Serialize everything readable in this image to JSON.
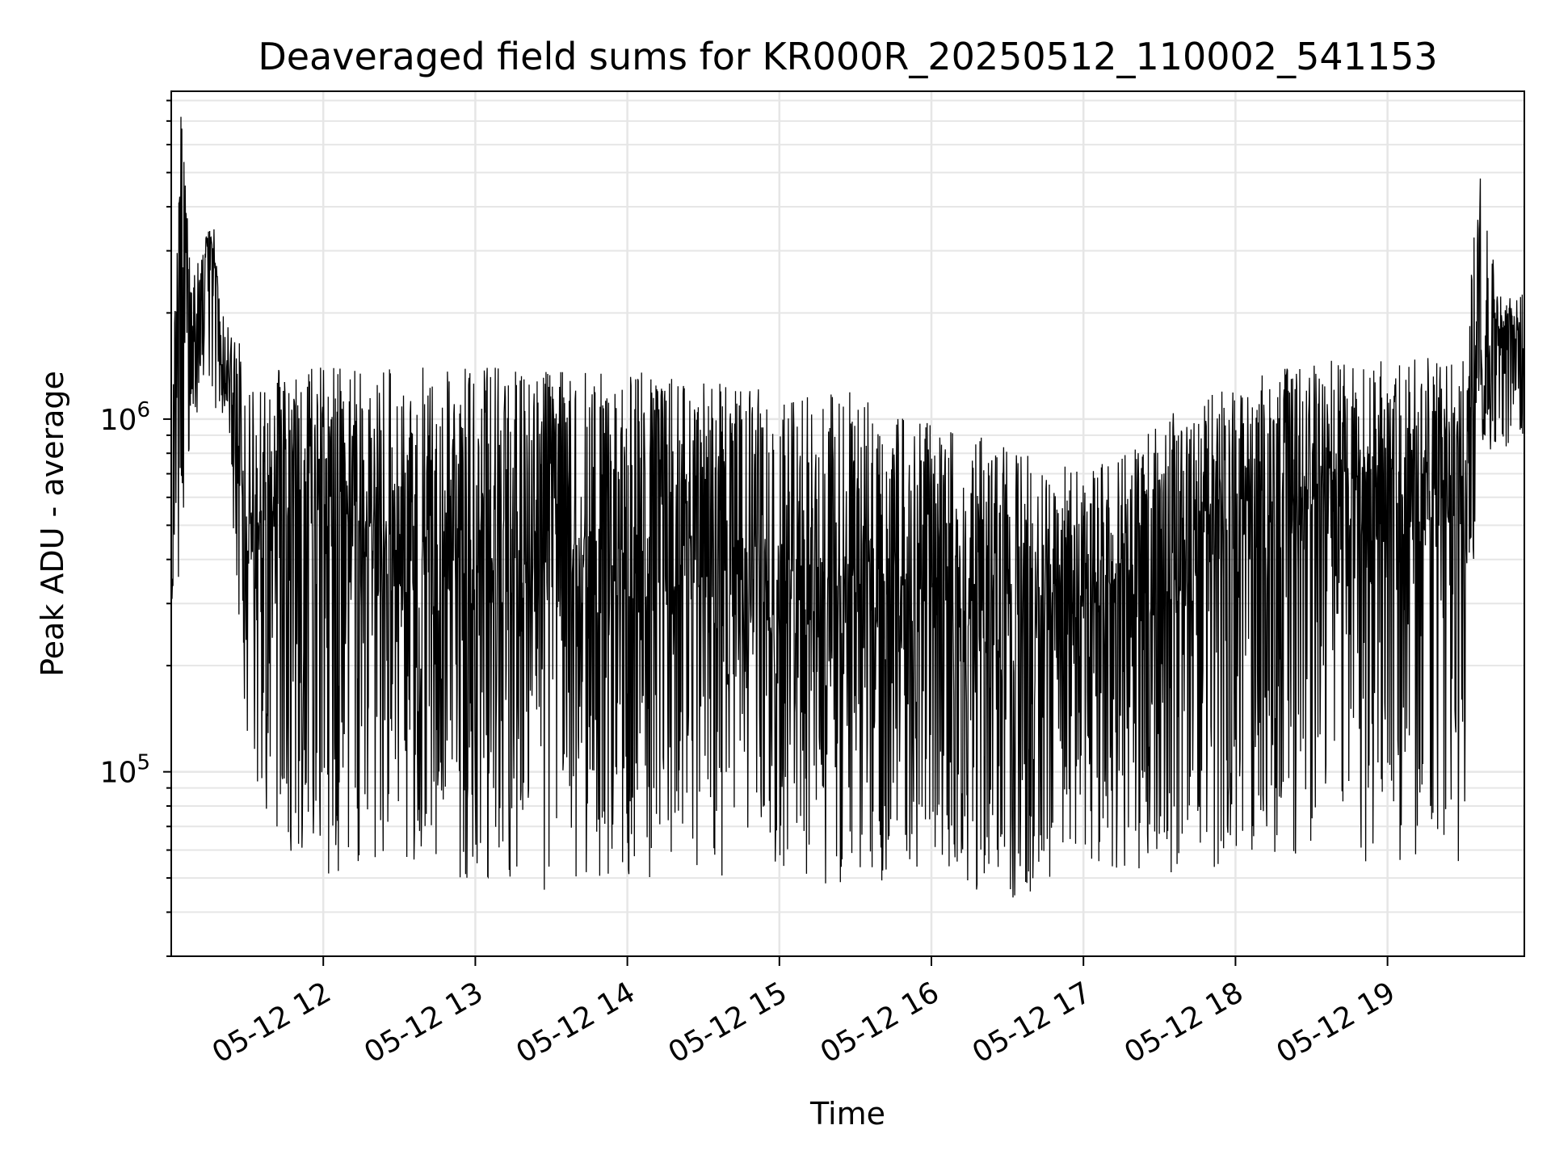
{
  "chart_data": {
    "type": "line",
    "title": "Deaveraged field sums for KR000R_20250512_110002_541153",
    "xlabel": "Time",
    "ylabel": "Peak ADU - average",
    "yscale": "log",
    "ylim": [
      30000,
      8500000
    ],
    "xlim": [
      "2025-05-12 11:00",
      "2025-05-12 19:54"
    ],
    "grid": true,
    "legend": "none",
    "line_color": "#000000",
    "grid_color": "#e6e6e6",
    "x_ticks": [
      {
        "value": "2025-05-12 12:00",
        "label": "05-12 12"
      },
      {
        "value": "2025-05-12 13:00",
        "label": "05-12 13"
      },
      {
        "value": "2025-05-12 14:00",
        "label": "05-12 14"
      },
      {
        "value": "2025-05-12 15:00",
        "label": "05-12 15"
      },
      {
        "value": "2025-05-12 16:00",
        "label": "05-12 16"
      },
      {
        "value": "2025-05-12 17:00",
        "label": "05-12 17"
      },
      {
        "value": "2025-05-12 18:00",
        "label": "05-12 18"
      },
      {
        "value": "2025-05-12 19:00",
        "label": "05-12 19"
      }
    ],
    "y_ticks": [
      {
        "value": 100000,
        "base": "10",
        "exp": "5"
      },
      {
        "value": 1000000,
        "base": "10",
        "exp": "6"
      }
    ],
    "series": [
      {
        "x": [
          "2025-05-12 11:00",
          "2025-05-12 11:04",
          "2025-05-12 11:08",
          "2025-05-12 11:15",
          "2025-05-12 11:22",
          "2025-05-12 11:30",
          "2025-05-12 11:45",
          "2025-05-12 12:00",
          "2025-05-12 12:30",
          "2025-05-12 13:00",
          "2025-05-12 13:30",
          "2025-05-12 14:00",
          "2025-05-12 14:30",
          "2025-05-12 15:00",
          "2025-05-12 15:30",
          "2025-05-12 16:00",
          "2025-05-12 16:30",
          "2025-05-12 17:00",
          "2025-05-12 17:30",
          "2025-05-12 18:00",
          "2025-05-12 18:30",
          "2025-05-12 19:00",
          "2025-05-12 19:30",
          "2025-05-12 19:36",
          "2025-05-12 19:45",
          "2025-05-12 19:54"
        ],
        "y": [
          300000,
          7000000,
          1400000,
          3500000,
          1300000,
          500000,
          700000,
          500000,
          380000,
          380000,
          360000,
          360000,
          350000,
          320000,
          300000,
          290000,
          250000,
          260000,
          350000,
          480000,
          560000,
          600000,
          560000,
          1400000,
          1800000,
          1100000
        ],
        "y_high": [
          1000000,
          7000000,
          2500000,
          3500000,
          1900000,
          1500000,
          1400000,
          1400000,
          1400000,
          1400000,
          1400000,
          1400000,
          1300000,
          1200000,
          1200000,
          1000000,
          850000,
          700000,
          1000000,
          1300000,
          1500000,
          1500000,
          1500000,
          5200000,
          2000000,
          2700000
        ],
        "y_low": [
          300000,
          350000,
          1000000,
          1000000,
          900000,
          100000,
          60000,
          50000,
          50000,
          50000,
          45000,
          50000,
          50000,
          50000,
          45000,
          55000,
          40000,
          55000,
          50000,
          55000,
          55000,
          55000,
          55000,
          900000,
          750000,
          900000
        ]
      }
    ]
  }
}
